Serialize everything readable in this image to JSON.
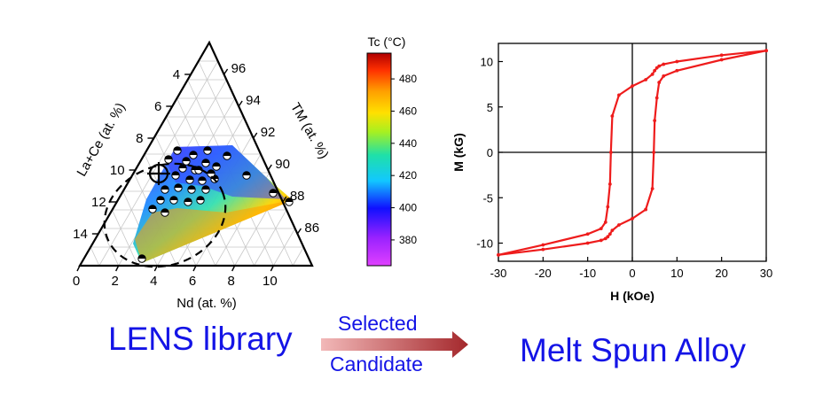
{
  "colors": {
    "caption_blue": "#1414e6",
    "loop_red": "#ee1c1c",
    "arrow_start": "#f2b8b8",
    "arrow_end": "#a4282c"
  },
  "captions": {
    "lens_library": "LENS library",
    "melt_spun_alloy": "Melt Spun Alloy",
    "arrow_top": "Selected",
    "arrow_bottom": "Candidate"
  },
  "chart_data": [
    {
      "type": "ternary",
      "axes": {
        "bottom": {
          "label": "Nd (at. %)",
          "ticks": [
            0,
            2,
            4,
            6,
            8,
            10
          ]
        },
        "left": {
          "label": "La+Ce (at. %)",
          "ticks": [
            4,
            6,
            8,
            10,
            12,
            14
          ]
        },
        "right": {
          "label": "TM (at. %)",
          "ticks": [
            96,
            94,
            92,
            90,
            88,
            86
          ]
        }
      },
      "grid": true,
      "colorbar": {
        "title": "Tc (°C)",
        "ticks": [
          380,
          400,
          420,
          440,
          460,
          480
        ],
        "range": [
          364,
          496
        ]
      },
      "markers": "half-filled circles (measured compositions)",
      "highlight": "dashed ellipse around low-La+Ce, low-Nd region with crosshair marker near Nd 1.5, La+Ce 10"
    },
    {
      "type": "line",
      "xlabel": "H (kOe)",
      "ylabel": "M (kG)",
      "xlim": [
        -30,
        30
      ],
      "ylim": [
        -12,
        12
      ],
      "xticks": [
        -30,
        -20,
        -10,
        0,
        10,
        20,
        30
      ],
      "yticks": [
        -10,
        -5,
        0,
        5,
        10
      ],
      "series": [
        {
          "x": [
            30,
            20,
            10,
            7,
            6,
            5.5,
            5,
            4.8,
            4.5,
            3,
            0,
            -3,
            -4.5,
            -5,
            -5.5,
            -6,
            -7,
            -10,
            -20,
            -30
          ],
          "y": [
            11.2,
            10.2,
            9.0,
            8.4,
            7.7,
            6.0,
            3.5,
            0,
            -4.0,
            -6.3,
            -7.3,
            -8.0,
            -8.6,
            -9.0,
            -9.3,
            -9.5,
            -9.7,
            -10.0,
            -10.7,
            -11.3
          ]
        },
        {
          "x": [
            -30,
            -20,
            -10,
            -7,
            -6,
            -5.5,
            -5,
            -4.8,
            -4.5,
            -3,
            0,
            3,
            4.5,
            5,
            5.5,
            6,
            7,
            10,
            20,
            30
          ],
          "y": [
            -11.3,
            -10.2,
            -9.0,
            -8.4,
            -7.7,
            -6.0,
            -3.5,
            0,
            4.0,
            6.3,
            7.3,
            8.0,
            8.6,
            9.0,
            9.3,
            9.5,
            9.7,
            10.0,
            10.7,
            11.2
          ]
        }
      ]
    }
  ]
}
